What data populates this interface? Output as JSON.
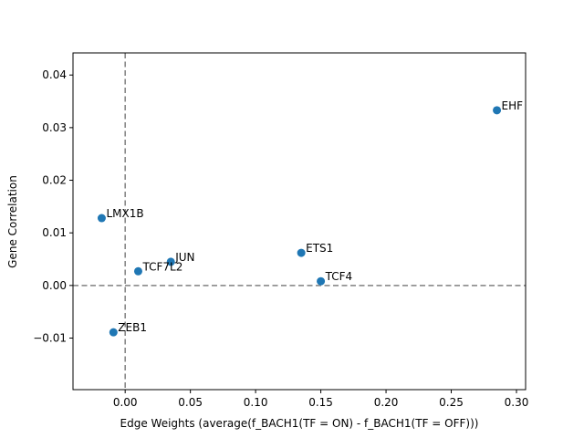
{
  "chart_data": {
    "type": "scatter",
    "title": "",
    "xlabel": "Edge Weights (average(f_BACH1(TF = ON) - f_BACH1(TF = OFF)))",
    "ylabel": "Gene Correlation",
    "xlim": [
      -0.04,
      0.307
    ],
    "ylim": [
      -0.0198,
      0.0442
    ],
    "x_ticks": [
      {
        "value": 0.0,
        "label": "0.00"
      },
      {
        "value": 0.05,
        "label": "0.05"
      },
      {
        "value": 0.1,
        "label": "0.10"
      },
      {
        "value": 0.15,
        "label": "0.15"
      },
      {
        "value": 0.2,
        "label": "0.20"
      },
      {
        "value": 0.25,
        "label": "0.25"
      },
      {
        "value": 0.3,
        "label": "0.30"
      }
    ],
    "y_ticks": [
      {
        "value": -0.01,
        "label": "−0.01"
      },
      {
        "value": 0.0,
        "label": "0.00"
      },
      {
        "value": 0.01,
        "label": "0.01"
      },
      {
        "value": 0.02,
        "label": "0.02"
      },
      {
        "value": 0.03,
        "label": "0.03"
      },
      {
        "value": 0.04,
        "label": "0.04"
      }
    ],
    "reference_lines": {
      "x": 0.0,
      "y": 0.0,
      "style": "dashed",
      "color": "#808080"
    },
    "grid": false,
    "marker_color": "#1f77b4",
    "points": [
      {
        "label": "EHF",
        "x": 0.285,
        "y": 0.0333
      },
      {
        "label": "LMX1B",
        "x": -0.018,
        "y": 0.0128
      },
      {
        "label": "JUN",
        "x": 0.035,
        "y": 0.0045
      },
      {
        "label": "TCF7L2",
        "x": 0.01,
        "y": 0.0027
      },
      {
        "label": "ETS1",
        "x": 0.135,
        "y": 0.0062
      },
      {
        "label": "TCF4",
        "x": 0.15,
        "y": 0.0008
      },
      {
        "label": "ZEB1",
        "x": -0.009,
        "y": -0.0089
      }
    ]
  }
}
